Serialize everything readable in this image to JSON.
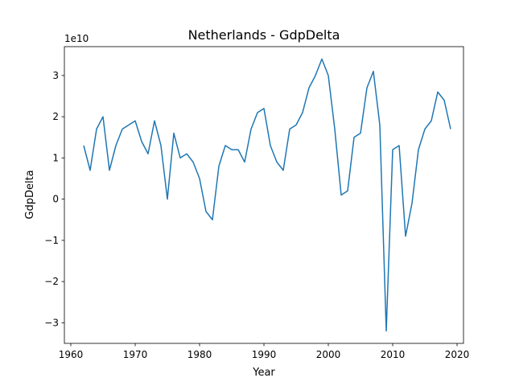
{
  "chart_data": {
    "type": "line",
    "title": "Netherlands - GdpDelta",
    "xlabel": "Year",
    "ylabel": "GdpDelta",
    "y_scale_label": "1e10",
    "y_scale": 10000000000,
    "xlim": [
      1959,
      2021
    ],
    "ylim": [
      -3.5,
      3.7
    ],
    "x_ticks": [
      1960,
      1970,
      1980,
      1990,
      2000,
      2010,
      2020
    ],
    "y_ticks": [
      -3,
      -2,
      -1,
      0,
      1,
      2,
      3
    ],
    "grid": false,
    "line_color": "#1f77b4",
    "series": [
      {
        "x": [
          1962,
          1963,
          1964,
          1965,
          1966,
          1967,
          1968,
          1969,
          1970,
          1971,
          1972,
          1973,
          1974,
          1975,
          1976,
          1977,
          1978,
          1979,
          1980,
          1981,
          1982,
          1983,
          1984,
          1985,
          1986,
          1987,
          1988,
          1989,
          1990,
          1991,
          1992,
          1993,
          1994,
          1995,
          1996,
          1997,
          1998,
          1999,
          2000,
          2001,
          2002,
          2003,
          2004,
          2005,
          2006,
          2007,
          2008,
          2009,
          2010,
          2011,
          2012,
          2013,
          2014,
          2015,
          2016,
          2017,
          2018,
          2019
        ],
        "values": [
          1.3,
          0.7,
          1.7,
          2.0,
          0.7,
          1.3,
          1.7,
          1.8,
          1.9,
          1.4,
          1.1,
          1.9,
          1.3,
          0.0,
          1.6,
          1.0,
          1.1,
          0.9,
          0.5,
          -0.3,
          -0.5,
          0.8,
          1.3,
          1.2,
          1.2,
          0.9,
          1.7,
          2.1,
          2.2,
          1.3,
          0.9,
          0.7,
          1.7,
          1.8,
          2.1,
          2.7,
          3.0,
          3.4,
          3.0,
          1.7,
          0.1,
          0.2,
          1.5,
          1.6,
          2.7,
          3.1,
          1.8,
          -3.2,
          1.2,
          1.3,
          -0.9,
          -0.1,
          1.2,
          1.7,
          1.9,
          2.6,
          2.4,
          1.7
        ]
      }
    ]
  }
}
